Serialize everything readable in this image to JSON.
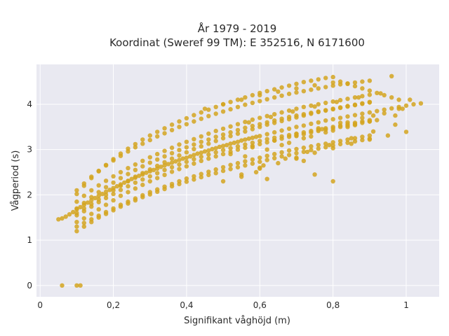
{
  "chart_data": {
    "type": "scatter",
    "title_lines": [
      "År 1979 - 2019",
      "Koordinat (Sweref 99 TM): E 352516, N 6171600"
    ],
    "xlabel": "Signifikant våghöjd (m)",
    "ylabel": "Vågperiod (s)",
    "xlim": [
      -0.01,
      1.09
    ],
    "ylim": [
      -0.25,
      4.88
    ],
    "xticks": [
      0,
      0.2,
      0.4,
      0.6,
      0.8,
      1.0
    ],
    "xtick_labels": [
      "0",
      "0,2",
      "0,4",
      "0,6",
      "0,8",
      "1"
    ],
    "yticks": [
      0,
      1,
      2,
      3,
      4
    ],
    "ytick_labels": [
      "0",
      "1",
      "2",
      "3",
      "4"
    ],
    "grid": true,
    "point_color": "#D4A420",
    "background_color": "#E9E9F1",
    "series": [
      {
        "x": [
          0.06,
          0.1,
          0.11,
          0.05,
          0.06,
          0.07,
          0.08,
          0.09,
          0.1,
          0.11,
          0.12,
          0.13,
          0.14,
          0.15,
          0.16,
          0.17,
          0.18,
          0.19,
          0.2,
          0.21,
          0.22,
          0.23,
          0.24,
          0.25,
          0.26,
          0.27,
          0.28,
          0.29,
          0.3,
          0.31,
          0.32,
          0.33,
          0.34,
          0.35,
          0.36,
          0.37,
          0.38,
          0.39,
          0.4,
          0.41,
          0.42,
          0.43,
          0.44,
          0.45,
          0.46,
          0.47,
          0.48,
          0.49,
          0.5,
          0.51,
          0.52,
          0.53,
          0.54,
          0.55,
          0.56,
          0.57,
          0.58,
          0.59,
          0.6,
          0.62,
          0.64,
          0.66,
          0.68,
          0.7,
          0.72,
          0.74,
          0.76,
          0.78,
          0.8,
          0.82,
          0.84,
          0.86,
          0.88,
          0.9,
          0.92,
          0.94,
          0.96,
          0.98,
          1.0,
          1.02,
          1.04,
          0.1,
          0.12,
          0.14,
          0.16,
          0.18,
          0.2,
          0.22,
          0.24,
          0.26,
          0.28,
          0.3,
          0.32,
          0.34,
          0.36,
          0.38,
          0.4,
          0.42,
          0.44,
          0.46,
          0.48,
          0.5,
          0.52,
          0.54,
          0.56,
          0.58,
          0.6,
          0.62,
          0.64,
          0.66,
          0.68,
          0.7,
          0.72,
          0.74,
          0.76,
          0.78,
          0.8,
          0.82,
          0.84,
          0.86,
          0.88,
          0.9,
          0.1,
          0.12,
          0.14,
          0.16,
          0.18,
          0.2,
          0.22,
          0.24,
          0.26,
          0.28,
          0.3,
          0.32,
          0.34,
          0.36,
          0.38,
          0.4,
          0.42,
          0.44,
          0.46,
          0.48,
          0.5,
          0.52,
          0.54,
          0.56,
          0.58,
          0.6,
          0.62,
          0.64,
          0.66,
          0.68,
          0.7,
          0.72,
          0.74,
          0.76,
          0.78,
          0.8,
          0.82,
          0.84,
          0.86,
          0.88,
          0.9,
          0.92,
          0.94,
          0.96,
          0.98,
          0.1,
          0.12,
          0.14,
          0.16,
          0.18,
          0.2,
          0.22,
          0.24,
          0.26,
          0.28,
          0.3,
          0.32,
          0.34,
          0.36,
          0.38,
          0.4,
          0.42,
          0.44,
          0.46,
          0.48,
          0.5,
          0.52,
          0.54,
          0.56,
          0.58,
          0.6,
          0.62,
          0.64,
          0.66,
          0.68,
          0.7,
          0.72,
          0.74,
          0.76,
          0.78,
          0.8,
          0.82,
          0.84,
          0.86,
          0.88,
          0.9,
          0.1,
          0.12,
          0.14,
          0.16,
          0.18,
          0.2,
          0.22,
          0.24,
          0.26,
          0.28,
          0.3,
          0.32,
          0.34,
          0.36,
          0.38,
          0.4,
          0.42,
          0.44,
          0.46,
          0.48,
          0.5,
          0.52,
          0.54,
          0.56,
          0.58,
          0.6,
          0.62,
          0.64,
          0.66,
          0.68,
          0.7,
          0.72,
          0.74,
          0.76,
          0.78,
          0.8,
          0.82,
          0.84,
          0.86,
          0.88,
          0.9,
          0.1,
          0.12,
          0.14,
          0.16,
          0.18,
          0.2,
          0.22,
          0.24,
          0.26,
          0.28,
          0.3,
          0.32,
          0.34,
          0.36,
          0.38,
          0.4,
          0.42,
          0.44,
          0.46,
          0.48,
          0.5,
          0.52,
          0.54,
          0.56,
          0.58,
          0.6,
          0.62,
          0.64,
          0.66,
          0.68,
          0.7,
          0.72,
          0.74,
          0.76,
          0.78,
          0.8,
          0.82,
          0.84,
          0.86,
          0.88,
          0.9,
          0.1,
          0.12,
          0.14,
          0.16,
          0.18,
          0.2,
          0.22,
          0.24,
          0.26,
          0.28,
          0.3,
          0.32,
          0.34,
          0.36,
          0.38,
          0.4,
          0.42,
          0.44,
          0.46,
          0.48,
          0.5,
          0.52,
          0.54,
          0.56,
          0.58,
          0.6,
          0.62,
          0.64,
          0.66,
          0.68,
          0.7,
          0.72,
          0.74,
          0.76,
          0.78,
          0.8,
          0.82,
          0.84,
          0.86,
          0.88,
          0.9,
          0.1,
          0.12,
          0.14,
          0.16,
          0.18,
          0.2,
          0.22,
          0.24,
          0.26,
          0.28,
          0.3,
          0.32,
          0.34,
          0.36,
          0.38,
          0.4,
          0.42,
          0.44,
          0.46,
          0.48,
          0.5,
          0.52,
          0.54,
          0.56,
          0.58,
          0.6,
          0.62,
          0.64,
          0.66,
          0.68,
          0.7,
          0.72,
          0.74,
          0.76,
          0.78,
          0.8,
          0.82,
          0.84,
          0.86,
          0.88,
          0.9,
          0.1,
          0.12,
          0.14,
          0.16,
          0.18,
          0.2,
          0.22,
          0.24,
          0.26,
          0.28,
          0.3,
          0.32,
          0.34,
          0.36,
          0.38,
          0.4,
          0.42,
          0.44,
          0.46,
          0.48,
          0.5,
          0.52,
          0.54,
          0.56,
          0.58,
          0.6,
          0.62,
          0.64,
          0.66,
          0.68,
          0.7,
          0.72,
          0.74,
          0.76,
          0.78,
          0.8,
          0.82,
          0.84,
          0.86,
          0.88,
          0.9,
          0.1,
          0.12,
          0.14,
          0.16,
          0.18,
          0.2,
          0.22,
          0.24,
          0.26,
          0.28,
          0.3,
          0.32,
          0.34,
          0.36,
          0.38,
          0.4,
          0.42,
          0.44,
          0.46,
          0.48,
          0.5,
          0.52,
          0.54,
          0.56,
          0.58,
          0.6,
          0.62,
          0.64,
          0.66,
          0.68,
          0.7,
          0.72,
          0.74,
          0.76,
          0.78,
          0.8,
          0.82,
          0.84,
          0.86,
          0.88,
          0.9,
          0.5,
          0.55,
          0.6,
          0.65,
          0.7,
          0.75,
          0.8,
          0.85,
          0.9,
          0.95,
          1.0,
          0.52,
          0.58,
          0.64,
          0.7,
          0.76,
          0.82,
          0.88,
          0.94,
          0.99,
          0.56,
          0.62,
          0.68,
          0.74,
          0.8,
          0.86,
          0.92,
          0.97,
          0.45,
          0.5,
          0.55,
          0.6,
          0.65,
          0.7,
          0.75,
          0.8,
          0.57,
          0.63,
          0.69,
          0.75,
          0.81,
          0.87,
          0.93,
          0.66,
          0.72,
          0.78,
          0.84,
          0.9,
          0.61,
          0.67,
          0.73,
          0.79,
          0.85,
          0.91,
          0.97,
          0.7,
          0.77,
          0.84,
          0.91,
          0.98,
          1.01,
          0.96,
          0.62,
          0.59,
          0.55,
          0.6,
          0.7,
          0.75,
          0.8,
          0.72
        ],
        "y": [
          0.0,
          0.0,
          0.0,
          1.46,
          1.48,
          1.52,
          1.57,
          1.62,
          1.68,
          1.73,
          1.78,
          1.83,
          1.88,
          1.93,
          1.98,
          2.02,
          2.07,
          2.11,
          2.15,
          2.19,
          2.23,
          2.27,
          2.31,
          2.35,
          2.38,
          2.42,
          2.45,
          2.49,
          2.52,
          2.55,
          2.58,
          2.62,
          2.65,
          2.68,
          2.71,
          2.74,
          2.77,
          2.8,
          2.82,
          2.85,
          2.88,
          2.91,
          2.93,
          2.96,
          2.98,
          3.01,
          3.03,
          3.06,
          3.08,
          3.1,
          3.13,
          3.15,
          3.17,
          3.2,
          3.22,
          3.24,
          3.26,
          3.28,
          3.3,
          3.34,
          3.38,
          3.42,
          3.46,
          3.5,
          3.53,
          3.57,
          3.6,
          3.64,
          3.67,
          3.7,
          3.73,
          3.76,
          3.79,
          3.82,
          3.85,
          3.88,
          3.91,
          3.94,
          3.97,
          4.0,
          4.02,
          1.2,
          1.3,
          1.4,
          1.5,
          1.58,
          1.66,
          1.74,
          1.81,
          1.88,
          1.95,
          2.01,
          2.07,
          2.13,
          2.19,
          2.24,
          2.29,
          2.34,
          2.39,
          2.44,
          2.48,
          2.53,
          2.57,
          2.61,
          2.65,
          2.69,
          2.73,
          2.77,
          2.81,
          2.85,
          2.88,
          2.92,
          2.95,
          2.99,
          3.02,
          3.05,
          3.09,
          3.12,
          3.15,
          3.18,
          3.21,
          3.24,
          2.02,
          2.2,
          2.37,
          2.52,
          2.66,
          2.79,
          2.91,
          3.02,
          3.12,
          3.22,
          3.31,
          3.39,
          3.47,
          3.55,
          3.62,
          3.69,
          3.76,
          3.82,
          3.88,
          3.94,
          4.0,
          4.05,
          4.1,
          4.15,
          4.2,
          4.25,
          4.29,
          4.33,
          4.37,
          4.41,
          4.45,
          4.49,
          4.52,
          4.55,
          4.58,
          4.6,
          4.5,
          4.45,
          4.4,
          4.35,
          4.3,
          4.25,
          4.2,
          4.15,
          4.1,
          1.4,
          1.48,
          1.58,
          1.68,
          1.78,
          1.88,
          1.98,
          2.06,
          2.14,
          2.22,
          2.3,
          2.37,
          2.44,
          2.51,
          2.57,
          2.63,
          2.69,
          2.75,
          2.8,
          2.85,
          2.9,
          2.95,
          3.0,
          3.04,
          3.08,
          3.12,
          3.16,
          3.2,
          3.24,
          3.28,
          3.31,
          3.34,
          3.38,
          3.41,
          3.44,
          3.47,
          3.5,
          3.53,
          3.56,
          3.59,
          3.62,
          1.6,
          1.7,
          1.8,
          1.9,
          2.0,
          2.1,
          2.2,
          2.3,
          2.4,
          2.48,
          2.56,
          2.64,
          2.72,
          2.8,
          2.87,
          2.94,
          3.01,
          3.07,
          3.13,
          3.19,
          3.25,
          3.3,
          3.35,
          3.4,
          3.45,
          3.5,
          3.55,
          3.59,
          3.63,
          3.67,
          3.71,
          3.75,
          3.79,
          3.83,
          3.86,
          3.89,
          3.92,
          3.95,
          3.98,
          4.01,
          4.04,
          1.85,
          1.98,
          2.1,
          2.21,
          2.31,
          2.41,
          2.5,
          2.59,
          2.67,
          2.75,
          2.83,
          2.9,
          2.97,
          3.04,
          3.11,
          3.17,
          3.23,
          3.29,
          3.35,
          3.41,
          3.46,
          3.51,
          3.56,
          3.61,
          3.66,
          3.7,
          3.74,
          3.78,
          3.82,
          3.86,
          3.9,
          3.94,
          3.97,
          4.0,
          4.03,
          4.06,
          4.09,
          4.12,
          4.15,
          4.18,
          4.21,
          1.3,
          1.38,
          1.46,
          1.54,
          1.62,
          1.7,
          1.78,
          1.85,
          1.92,
          1.99,
          2.06,
          2.12,
          2.18,
          2.24,
          2.3,
          2.36,
          2.41,
          2.46,
          2.51,
          2.56,
          2.61,
          2.66,
          2.7,
          2.74,
          2.78,
          2.82,
          2.86,
          2.9,
          2.94,
          2.98,
          3.01,
          3.04,
          3.07,
          3.1,
          3.13,
          3.16,
          3.19,
          3.22,
          3.25,
          3.28,
          3.31,
          1.7,
          1.82,
          1.95,
          2.06,
          2.17,
          2.27,
          2.37,
          2.46,
          2.55,
          2.63,
          2.71,
          2.78,
          2.85,
          2.92,
          2.99,
          3.05,
          3.11,
          3.17,
          3.22,
          3.28,
          3.33,
          3.38,
          3.43,
          3.48,
          3.52,
          3.56,
          3.6,
          3.64,
          3.68,
          3.72,
          3.75,
          3.78,
          3.81,
          3.84,
          3.87,
          3.9,
          3.93,
          3.96,
          3.99,
          4.02,
          4.05,
          1.55,
          1.64,
          1.74,
          1.84,
          1.93,
          2.02,
          2.11,
          2.19,
          2.27,
          2.34,
          2.41,
          2.48,
          2.55,
          2.61,
          2.67,
          2.73,
          2.79,
          2.84,
          2.89,
          2.94,
          2.99,
          3.03,
          3.07,
          3.11,
          3.15,
          3.19,
          3.23,
          3.26,
          3.29,
          3.32,
          3.35,
          3.38,
          3.41,
          3.44,
          3.47,
          3.5,
          3.53,
          3.56,
          3.59,
          3.62,
          3.65,
          2.1,
          2.25,
          2.4,
          2.53,
          2.65,
          2.76,
          2.86,
          2.96,
          3.05,
          3.13,
          3.21,
          3.29,
          3.36,
          3.43,
          3.5,
          3.56,
          3.62,
          3.68,
          3.74,
          3.79,
          3.84,
          3.89,
          3.94,
          3.99,
          4.03,
          4.07,
          4.11,
          4.15,
          4.19,
          4.23,
          4.26,
          4.29,
          4.32,
          4.35,
          4.38,
          4.41,
          4.44,
          4.46,
          4.48,
          4.5,
          4.52,
          2.3,
          2.45,
          2.58,
          2.7,
          2.82,
          2.93,
          3.03,
          3.13,
          3.22,
          3.31,
          3.39,
          2.9,
          3.05,
          3.2,
          3.34,
          3.47,
          3.59,
          3.7,
          3.8,
          3.9,
          2.85,
          3.0,
          3.15,
          3.29,
          3.42,
          3.54,
          3.65,
          3.75,
          3.9,
          4.0,
          4.1,
          4.2,
          4.28,
          4.35,
          4.42,
          4.48,
          3.6,
          3.72,
          3.84,
          3.95,
          4.05,
          4.15,
          4.24,
          3.1,
          3.25,
          3.38,
          3.5,
          3.62,
          2.65,
          2.8,
          2.95,
          3.1,
          3.25,
          3.4,
          3.55,
          3.3,
          3.45,
          3.6,
          3.75,
          3.9,
          4.1,
          4.62,
          2.35,
          2.5,
          2.4,
          2.6,
          2.8,
          2.45,
          2.3,
          2.75
        ]
      }
    ]
  }
}
